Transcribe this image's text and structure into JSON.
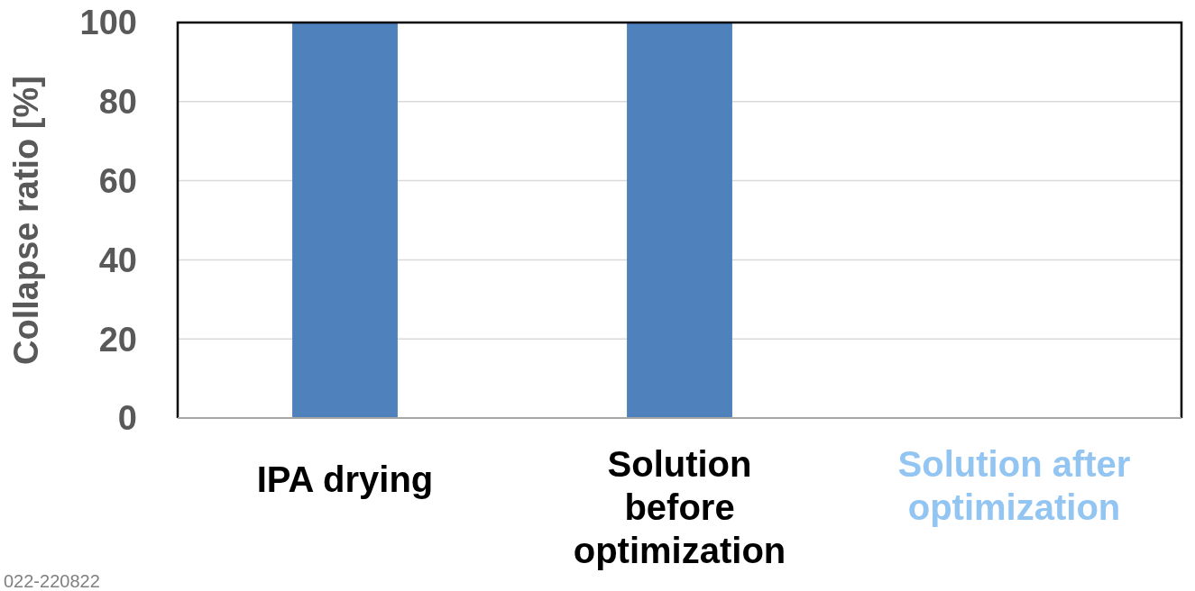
{
  "chart_data": {
    "type": "bar",
    "ylabel": "Collapse ratio [%]",
    "categories": [
      "IPA drying",
      "Solution\nbefore\noptimization",
      "Solution after\noptimization"
    ],
    "values": [
      100,
      100,
      0
    ],
    "color": "#4f81bd",
    "ylim": [
      0,
      100
    ],
    "yticks": [
      0,
      20,
      40,
      60,
      80,
      100
    ],
    "grid": "y",
    "annotations": [
      "022-220822"
    ]
  }
}
